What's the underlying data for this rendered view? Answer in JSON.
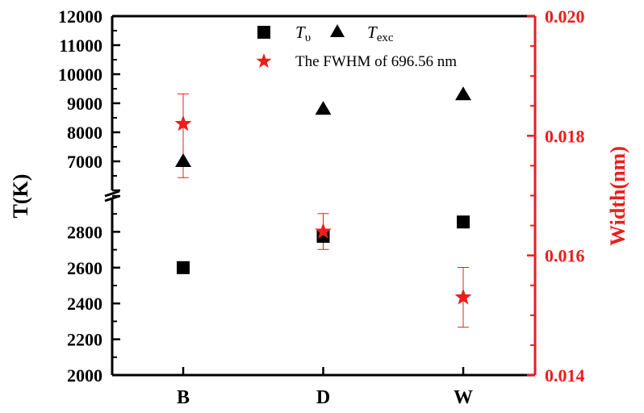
{
  "chart_data": {
    "type": "scatter",
    "categories": [
      "B",
      "D",
      "W"
    ],
    "y_left": {
      "label": "T(K)",
      "broken": true,
      "lower_range": [
        2000,
        3000
      ],
      "upper_range": [
        6000,
        12000
      ],
      "lower_ticks": [
        "2000",
        "2200",
        "2400",
        "2600",
        "2800"
      ],
      "upper_ticks": [
        "7000",
        "8000",
        "9000",
        "10000",
        "11000",
        "12000"
      ]
    },
    "y_right": {
      "label": "Width(nm)",
      "range": [
        0.014,
        0.02
      ],
      "ticks": [
        "0.014",
        "0.016",
        "0.018",
        "0.020"
      ],
      "color": "#ee1c1c"
    },
    "legend": {
      "tv_symbol": "T",
      "tv_sub": "υ",
      "texc_symbol": "T",
      "texc_sub": "exc",
      "fwhm_label": "The FWHM of  696.56 nm",
      "placement": "top-center"
    },
    "series": [
      {
        "key": "tv",
        "marker": "square",
        "color": "#000000",
        "axis": "left",
        "values": [
          2600,
          2775,
          2855
        ]
      },
      {
        "key": "texc",
        "marker": "triangle",
        "color": "#000000",
        "axis": "left",
        "values": [
          7000,
          8800,
          9300
        ]
      },
      {
        "key": "fwhm",
        "marker": "star",
        "color": "#ee1c1c",
        "axis": "right",
        "values": [
          0.0182,
          0.0164,
          0.0153
        ],
        "err_low": [
          0.0173,
          0.0161,
          0.0148
        ],
        "err_high": [
          0.0187,
          0.0167,
          0.0158
        ]
      }
    ]
  }
}
